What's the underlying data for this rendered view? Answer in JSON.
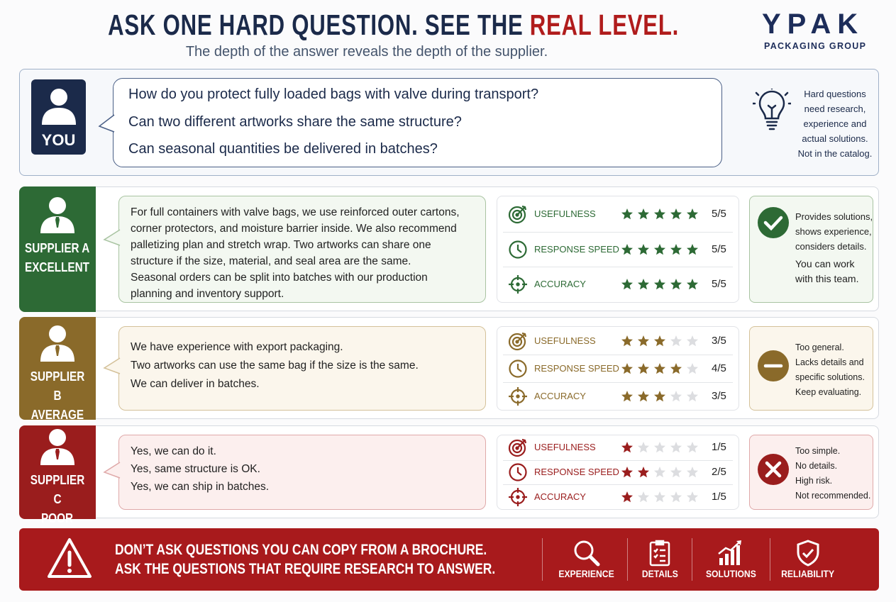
{
  "header": {
    "title_main": "ASK ONE HARD QUESTION. SEE THE",
    "title_highlight": "REAL LEVEL.",
    "subtitle": "The depth of the answer reveals the depth of the supplier."
  },
  "logo": {
    "name": "YPAK",
    "tagline": "PACKAGING GROUP"
  },
  "question_panel": {
    "speaker": "YOU",
    "questions": [
      "How do you protect fully loaded bags with valve during transport?",
      "Can two different artworks share the same structure?",
      "Can seasonal quantities be delivered in batches?"
    ],
    "note": [
      "Hard questions",
      "need research,",
      "experience and",
      "actual solutions.",
      "Not in the catalog."
    ]
  },
  "suppliers": [
    {
      "name": "SUPPLIER A",
      "level": "EXCELLENT",
      "answer": [
        "For full containers with valve bags, we use reinforced outer cartons,",
        "corner protectors, and moisture barrier inside. We also recommend",
        "palletizing plan and stretch wrap. Two artworks can share one",
        "structure if the size, material, and seal area are the same.",
        "Seasonal orders can be split into batches with our production",
        "planning and inventory support."
      ],
      "ratings": [
        {
          "name": "USEFULNESS",
          "value": 5,
          "label": "5/5"
        },
        {
          "name": "RESPONSE SPEED",
          "value": 5,
          "label": "5/5"
        },
        {
          "name": "ACCURACY",
          "value": 5,
          "label": "5/5"
        }
      ],
      "verdict": [
        "Provides solutions,",
        "shows experience,",
        "considers details.",
        "You can work",
        "with this team."
      ]
    },
    {
      "name": "SUPPLIER B",
      "level": "AVERAGE",
      "answer": [
        "We have experience with export packaging.",
        "Two artworks can use the same bag if the size is the same.",
        "We can deliver in batches."
      ],
      "ratings": [
        {
          "name": "USEFULNESS",
          "value": 3,
          "label": "3/5"
        },
        {
          "name": "RESPONSE SPEED",
          "value": 4,
          "label": "4/5"
        },
        {
          "name": "ACCURACY",
          "value": 3,
          "label": "3/5"
        }
      ],
      "verdict": [
        "Too general.",
        "Lacks details and",
        "specific solutions.",
        "Keep evaluating."
      ]
    },
    {
      "name": "SUPPLIER C",
      "level": "POOR",
      "answer": [
        "Yes, we can do it.",
        "Yes, same structure is OK.",
        "Yes, we can ship in batches."
      ],
      "ratings": [
        {
          "name": "USEFULNESS",
          "value": 1,
          "label": "1/5"
        },
        {
          "name": "RESPONSE SPEED",
          "value": 2,
          "label": "2/5"
        },
        {
          "name": "ACCURACY",
          "value": 1,
          "label": "1/5"
        }
      ],
      "verdict": [
        "Too simple.",
        "No details.",
        "High risk.",
        "Not recommended."
      ]
    }
  ],
  "banner": {
    "lines": [
      "DON’T ASK QUESTIONS  YOU CAN COPY FROM A BROCHURE.",
      "ASK THE QUESTIONS THAT REQUIRE RESEARCH TO ANSWER."
    ],
    "pillars": [
      "EXPERIENCE",
      "DETAILS",
      "SOLUTIONS",
      "RELIABILITY"
    ]
  }
}
